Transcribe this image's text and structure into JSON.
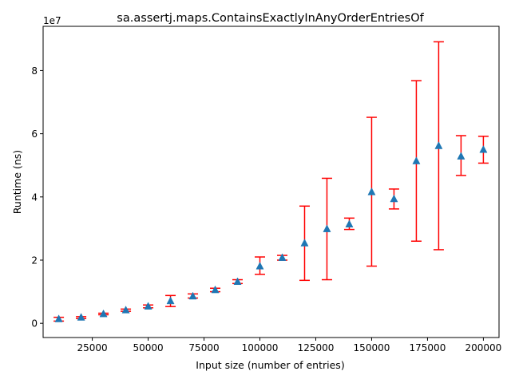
{
  "chart_data": {
    "type": "scatter",
    "title": "sa.assertj.maps.ContainsExactlyInAnyOrderEntriesOf",
    "xlabel": "Input size (number of entries)",
    "ylabel": "Runtime (ns)",
    "y_multiplier_label": "1e7",
    "xlim": [
      3000,
      207000
    ],
    "ylim": [
      -4500000,
      94000000
    ],
    "x_ticks": [
      25000,
      50000,
      75000,
      100000,
      125000,
      150000,
      175000,
      200000
    ],
    "x_tick_labels": [
      "25000",
      "50000",
      "75000",
      "100000",
      "125000",
      "150000",
      "175000",
      "200000"
    ],
    "y_ticks": [
      0,
      20000000,
      40000000,
      60000000,
      80000000
    ],
    "y_tick_labels": [
      "0",
      "2",
      "4",
      "6",
      "8"
    ],
    "grid": false,
    "marker": "triangle",
    "marker_color": "#1f77b4",
    "errorbar_color": "#ff0000",
    "series": [
      {
        "points": [
          {
            "x": 10000,
            "y": 1300000,
            "low": 700000,
            "high": 1900000
          },
          {
            "x": 20000,
            "y": 1800000,
            "low": 1500000,
            "high": 2100000
          },
          {
            "x": 30000,
            "y": 2900000,
            "low": 2700000,
            "high": 3200000
          },
          {
            "x": 40000,
            "y": 4100000,
            "low": 3800000,
            "high": 4500000
          },
          {
            "x": 50000,
            "y": 5300000,
            "low": 4900000,
            "high": 5800000
          },
          {
            "x": 60000,
            "y": 7000000,
            "low": 5300000,
            "high": 8800000
          },
          {
            "x": 70000,
            "y": 8500000,
            "low": 8000000,
            "high": 9300000
          },
          {
            "x": 80000,
            "y": 10500000,
            "low": 10000000,
            "high": 11100000
          },
          {
            "x": 90000,
            "y": 13100000,
            "low": 12600000,
            "high": 13800000
          },
          {
            "x": 100000,
            "y": 18000000,
            "low": 15500000,
            "high": 21000000
          },
          {
            "x": 110000,
            "y": 20700000,
            "low": 20000000,
            "high": 21500000
          },
          {
            "x": 120000,
            "y": 25300000,
            "low": 13600000,
            "high": 37100000
          },
          {
            "x": 130000,
            "y": 29800000,
            "low": 13800000,
            "high": 45900000
          },
          {
            "x": 140000,
            "y": 31300000,
            "low": 29700000,
            "high": 33300000
          },
          {
            "x": 150000,
            "y": 41500000,
            "low": 18100000,
            "high": 65200000
          },
          {
            "x": 160000,
            "y": 39300000,
            "low": 36200000,
            "high": 42500000
          },
          {
            "x": 170000,
            "y": 51300000,
            "low": 26000000,
            "high": 76800000
          },
          {
            "x": 180000,
            "y": 56100000,
            "low": 23300000,
            "high": 89100000
          },
          {
            "x": 190000,
            "y": 52800000,
            "low": 46800000,
            "high": 59400000
          },
          {
            "x": 200000,
            "y": 54900000,
            "low": 50700000,
            "high": 59200000
          }
        ]
      }
    ]
  }
}
